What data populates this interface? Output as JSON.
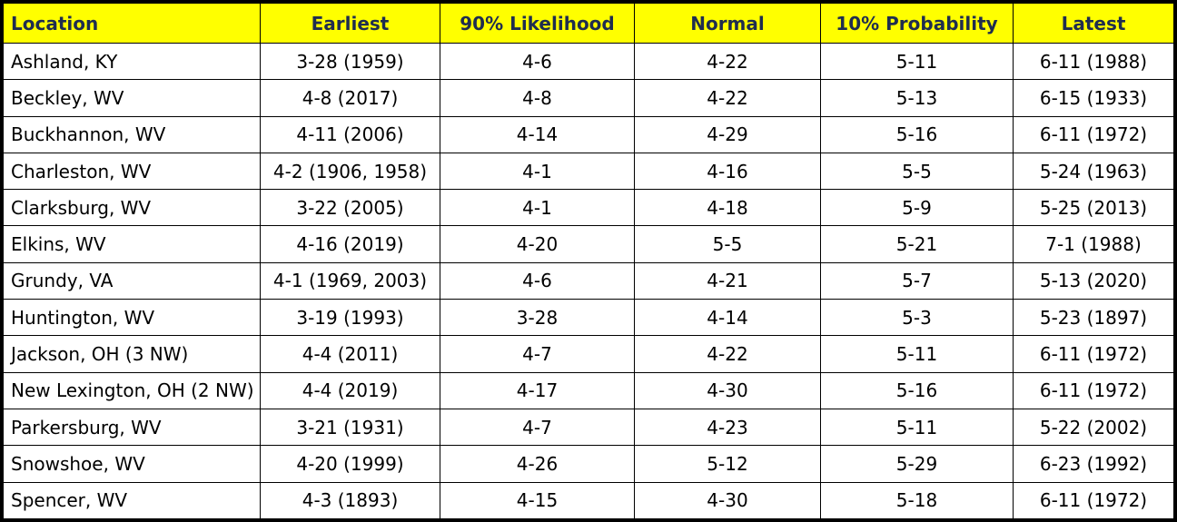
{
  "table": {
    "headers": {
      "location": "Location",
      "earliest": "Earliest",
      "likelihood90": "90% Likelihood",
      "normal": "Normal",
      "probability10": "10% Probability",
      "latest": "Latest"
    },
    "rows": [
      {
        "location": "Ashland, KY",
        "earliest": "3-28 (1959)",
        "likelihood90": "4-6",
        "normal": "4-22",
        "probability10": "5-11",
        "latest": "6-11 (1988)"
      },
      {
        "location": "Beckley, WV",
        "earliest": "4-8 (2017)",
        "likelihood90": "4-8",
        "normal": "4-22",
        "probability10": "5-13",
        "latest": "6-15 (1933)"
      },
      {
        "location": "Buckhannon, WV",
        "earliest": "4-11 (2006)",
        "likelihood90": "4-14",
        "normal": "4-29",
        "probability10": "5-16",
        "latest": "6-11 (1972)"
      },
      {
        "location": "Charleston, WV",
        "earliest": "4-2 (1906, 1958)",
        "likelihood90": "4-1",
        "normal": "4-16",
        "probability10": "5-5",
        "latest": "5-24 (1963)"
      },
      {
        "location": "Clarksburg, WV",
        "earliest": "3-22 (2005)",
        "likelihood90": "4-1",
        "normal": "4-18",
        "probability10": "5-9",
        "latest": "5-25 (2013)"
      },
      {
        "location": "Elkins, WV",
        "earliest": "4-16 (2019)",
        "likelihood90": "4-20",
        "normal": "5-5",
        "probability10": "5-21",
        "latest": "7-1 (1988)"
      },
      {
        "location": "Grundy, VA",
        "earliest": "4-1 (1969, 2003)",
        "likelihood90": "4-6",
        "normal": "4-21",
        "probability10": "5-7",
        "latest": "5-13 (2020)"
      },
      {
        "location": "Huntington, WV",
        "earliest": "3-19 (1993)",
        "likelihood90": "3-28",
        "normal": "4-14",
        "probability10": "5-3",
        "latest": "5-23 (1897)"
      },
      {
        "location": "Jackson, OH (3 NW)",
        "earliest": "4-4 (2011)",
        "likelihood90": "4-7",
        "normal": "4-22",
        "probability10": "5-11",
        "latest": "6-11 (1972)"
      },
      {
        "location": "New Lexington, OH (2 NW)",
        "earliest": "4-4 (2019)",
        "likelihood90": "4-17",
        "normal": "4-30",
        "probability10": "5-16",
        "latest": "6-11 (1972)"
      },
      {
        "location": "Parkersburg, WV",
        "earliest": "3-21 (1931)",
        "likelihood90": "4-7",
        "normal": "4-23",
        "probability10": "5-11",
        "latest": "5-22 (2002)"
      },
      {
        "location": "Snowshoe, WV",
        "earliest": "4-20 (1999)",
        "likelihood90": "4-26",
        "normal": "5-12",
        "probability10": "5-29",
        "latest": "6-23 (1992)"
      },
      {
        "location": "Spencer, WV",
        "earliest": "4-3 (1893)",
        "likelihood90": "4-15",
        "normal": "4-30",
        "probability10": "5-18",
        "latest": "6-11 (1972)"
      }
    ]
  },
  "colors": {
    "header_background": "#ffff00",
    "header_text": "#1f2d4f",
    "border": "#000000"
  }
}
